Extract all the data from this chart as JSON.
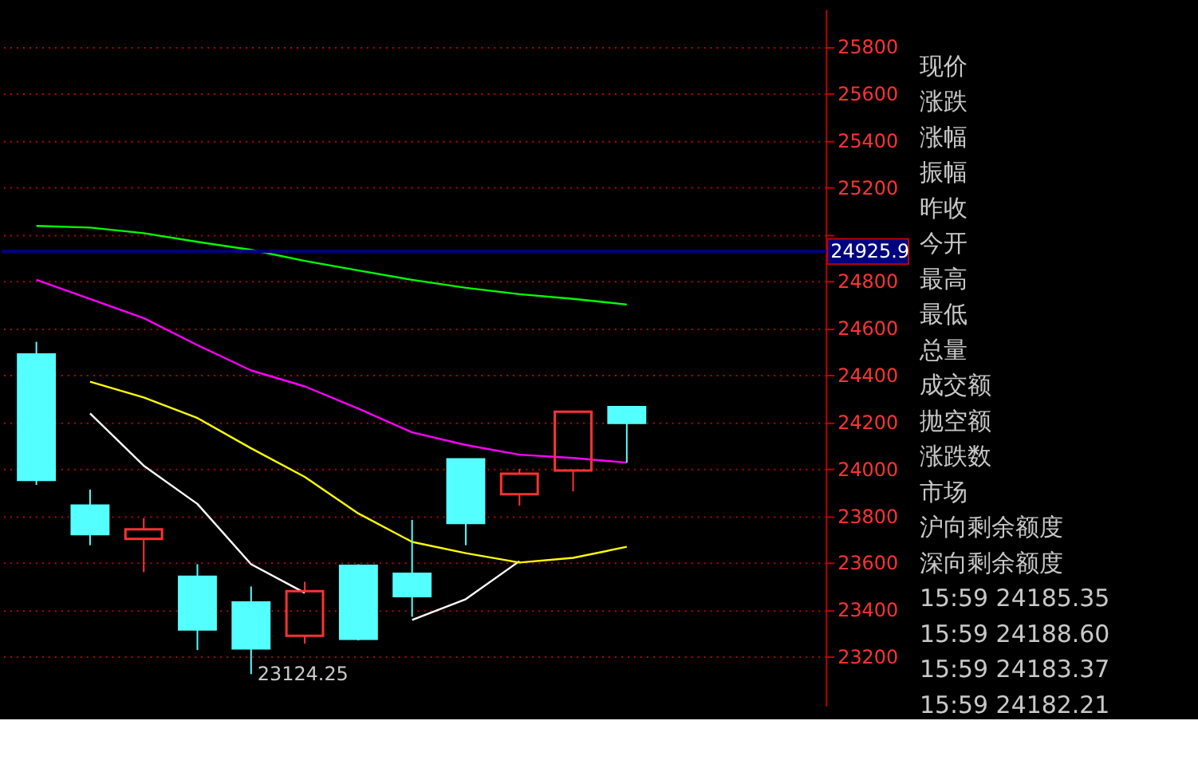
{
  "chart_data": [
    {
      "type": "candlestick",
      "categories": [
        null,
        null,
        null,
        null,
        null,
        null,
        null,
        null,
        null,
        null,
        null,
        null
      ],
      "ohlc": [
        [
          24487,
          24541,
          23931,
          23952
        ],
        [
          23843,
          23911,
          23674,
          23721
        ],
        [
          23701,
          23789,
          23559,
          23742
        ],
        [
          23539,
          23593,
          23227,
          23315
        ],
        [
          23430,
          23498,
          23124.25,
          23234
        ],
        [
          23288,
          23518,
          23254,
          23478
        ],
        [
          23586,
          23593,
          23268,
          23275
        ],
        [
          23552,
          23782,
          23369,
          23457
        ],
        [
          24040,
          24040,
          23674,
          23769
        ],
        [
          23891,
          23999,
          23843,
          23979
        ],
        [
          23992,
          24243,
          23904,
          24243
        ],
        [
          24263,
          24263,
          24026,
          24195
        ]
      ],
      "colors": [
        "#54ffff",
        "#54ffff",
        "#ff3232",
        "#54ffff",
        "#54ffff",
        "#ff3232",
        "#54ffff",
        "#54ffff",
        "#54ffff",
        "#ff3232",
        "#ff3232",
        "#54ffff"
      ],
      "series": [
        {
          "type": "line",
          "color": "#ffffff",
          "values": [
            null,
            24236,
            24013,
            23850,
            23593,
            23471,
            null,
            23355,
            23444,
            23606,
            null,
            null
          ]
        },
        {
          "type": "line",
          "color": "#ffff00",
          "values": [
            null,
            24371,
            24304,
            24216,
            24087,
            23965,
            23809,
            23688,
            23640,
            23600,
            23620,
            23667
          ]
        },
        {
          "type": "line",
          "color": "#ff00ff",
          "values": [
            24805,
            24724,
            24642,
            24527,
            24419,
            24351,
            24256,
            24155,
            24101,
            24060,
            24046,
            24026
          ]
        },
        {
          "type": "line",
          "color": "#00ff00",
          "values": [
            25035,
            25028,
            25004,
            24967,
            24933,
            24886,
            24845,
            24805,
            24771,
            24744,
            24724,
            24700
          ]
        }
      ],
      "ylim": [
        22990,
        25960
      ],
      "yticks": [
        23200,
        23400,
        23600,
        23800,
        24000,
        24200,
        24400,
        24600,
        24800,
        {
          "value": 25000,
          "label": null
        },
        25200,
        25400,
        25600,
        25800
      ],
      "grid": "y",
      "tick_labels": "y",
      "annotations": [
        "23124.25"
      ],
      "ref_lines": [
        {
          "axis": "y",
          "value": 24925.9,
          "label": "24925.9",
          "color": "#000080"
        }
      ]
    },
    {
      "type": "other",
      "annotations": [
        "现价",
        "涨跌",
        "涨幅",
        "振幅",
        "昨收",
        "今开",
        "最高",
        "最低",
        "总量",
        "成交额",
        "抛空额",
        "涨跌数",
        "市场",
        "沪向剩余额度",
        "深向剩余额度",
        "15:59   24185.35",
        "15:59   24188.60",
        "15:59   24183.37",
        "15:59   24182.21"
      ]
    }
  ]
}
